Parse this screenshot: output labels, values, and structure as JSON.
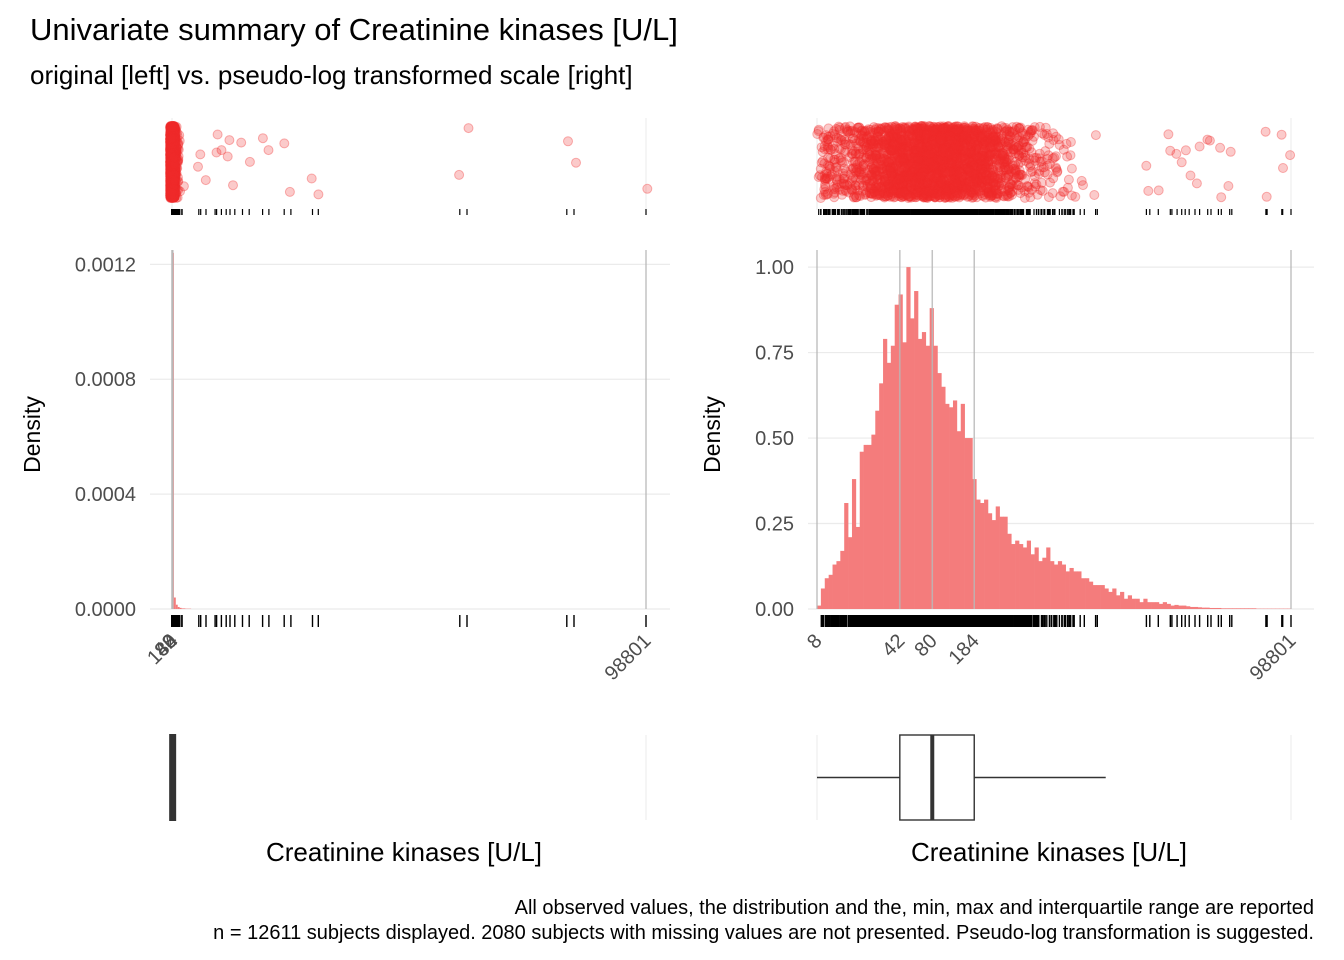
{
  "title": "Univariate summary of Creatinine kinases [U/L]",
  "subtitle": "original [left] vs. pseudo-log transformed scale [right]",
  "caption": [
    "All observed values, the distribution and the, min, max and interquartile range are reported",
    "n = 12611 subjects displayed. 2080 subjects with missing values are not presented. Pseudo-log transformation is suggested."
  ],
  "colors": {
    "accent": "#F02A2A",
    "bar": "#F47C7C",
    "grid": "#EBEBEB",
    "vline": "#B8B8B8",
    "text": "#4D4D4D"
  },
  "chart_data": [
    {
      "panel": "left",
      "type": "histogram",
      "scale": "original",
      "ylabel": "Density",
      "xlabel": "Creatinine kinases [U/L]",
      "xlim": [
        8,
        98801
      ],
      "ylim": [
        0,
        0.00125
      ],
      "yticks": [
        0,
        0.0004,
        0.0008,
        0.0012
      ],
      "ytick_labels": [
        "0.0000",
        "0.0004",
        "0.0008",
        "0.0012"
      ],
      "xticks": [
        8,
        42,
        80,
        184,
        98801
      ],
      "xtick_labels": [
        "8",
        "42",
        "80",
        "184",
        "98801"
      ],
      "bins": [
        {
          "x0": 8,
          "x1": 400,
          "density": 0.00124
        },
        {
          "x0": 400,
          "x1": 800,
          "density": 4e-05
        },
        {
          "x0": 800,
          "x1": 1200,
          "density": 1.5e-05
        },
        {
          "x0": 1200,
          "x1": 1600,
          "density": 7e-06
        },
        {
          "x0": 1600,
          "x1": 2000,
          "density": 4e-06
        },
        {
          "x0": 2000,
          "x1": 2800,
          "density": 2e-06
        },
        {
          "x0": 2800,
          "x1": 4000,
          "density": 1e-06
        }
      ],
      "rug_extremes": [
        5600,
        6000,
        7100,
        9000,
        9300,
        10300,
        11300,
        12100,
        13100,
        14700,
        16100,
        18900,
        20200,
        23400,
        24800,
        29300,
        30500,
        60000,
        61500,
        82300,
        83800,
        98801
      ],
      "boxplot": {
        "min": 8,
        "q1": 42,
        "median": 80,
        "q3": 184,
        "max": 98801
      }
    },
    {
      "panel": "right",
      "type": "histogram",
      "scale": "pseudo-log",
      "ylabel": "Density",
      "xlabel": "Creatinine kinases [U/L]",
      "xlim": [
        8,
        98801
      ],
      "ylim": [
        0,
        1.05
      ],
      "yticks": [
        0,
        0.25,
        0.5,
        0.75,
        1.0
      ],
      "ytick_labels": [
        "0.00",
        "0.25",
        "0.50",
        "0.75",
        "1.00"
      ],
      "xticks": [
        8,
        42,
        80,
        184,
        98801
      ],
      "xtick_labels": [
        "8",
        "42",
        "80",
        "184",
        "98801"
      ],
      "density": [
        0.01,
        0.06,
        0.09,
        0.1,
        0.13,
        0.14,
        0.17,
        0.31,
        0.21,
        0.38,
        0.24,
        0.46,
        0.48,
        0.48,
        0.51,
        0.58,
        0.66,
        0.79,
        0.72,
        0.77,
        0.89,
        0.92,
        0.78,
        1.0,
        0.85,
        0.93,
        0.79,
        0.81,
        0.77,
        0.88,
        0.77,
        0.69,
        0.65,
        0.6,
        0.59,
        0.61,
        0.52,
        0.6,
        0.5,
        0.5,
        0.38,
        0.32,
        0.31,
        0.32,
        0.28,
        0.26,
        0.3,
        0.27,
        0.27,
        0.22,
        0.19,
        0.2,
        0.19,
        0.18,
        0.2,
        0.16,
        0.18,
        0.14,
        0.15,
        0.18,
        0.14,
        0.13,
        0.14,
        0.13,
        0.11,
        0.12,
        0.11,
        0.11,
        0.09,
        0.09,
        0.08,
        0.07,
        0.07,
        0.07,
        0.06,
        0.05,
        0.06,
        0.04,
        0.05,
        0.03,
        0.04,
        0.03,
        0.03,
        0.02,
        0.03,
        0.02,
        0.02,
        0.02,
        0.015,
        0.02,
        0.015,
        0.01,
        0.012,
        0.01,
        0.01,
        0.008,
        0.006,
        0.006,
        0.005,
        0.004,
        0.004,
        0.003,
        0.003,
        0.003,
        0.002,
        0.002,
        0.002,
        0.002,
        0.002,
        0.002,
        0.002,
        0.002,
        0.002,
        0.001,
        0.001,
        0.001,
        0.001,
        0.001,
        0.001,
        0.001,
        0.001,
        0.001
      ],
      "boxplot": {
        "min": 8,
        "q1": 42,
        "median": 80,
        "q3": 184,
        "whisker_high": 2500,
        "max": 98801
      }
    }
  ]
}
